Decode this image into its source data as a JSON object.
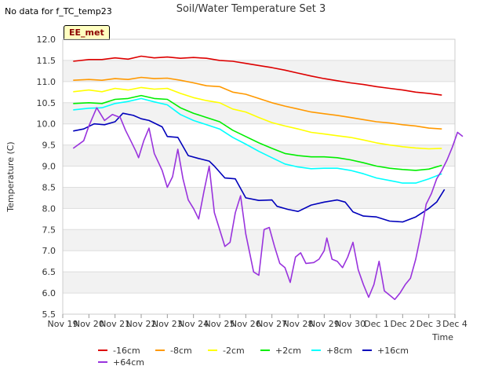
{
  "header": {
    "no_data": "No data for f_TC_temp23",
    "site_badge": "EE_met"
  },
  "chart_data": {
    "type": "line",
    "title": "Soil/Water Temperature Set 3",
    "xlabel": "Time",
    "ylabel": "Temperature (C)",
    "ylim": [
      5.5,
      12.0
    ],
    "xlim": [
      0,
      15
    ],
    "y_ticks": [
      "5.5",
      "6.0",
      "6.5",
      "7.0",
      "7.5",
      "8.0",
      "8.5",
      "9.0",
      "9.5",
      "10.0",
      "10.5",
      "11.0",
      "11.5",
      "12.0"
    ],
    "x_tick_labels": [
      "Nov 19",
      "Nov 20",
      "Nov 21",
      "Nov 22",
      "Nov 23",
      "Nov 24",
      "Nov 25",
      "Nov 26",
      "Nov 27",
      "Nov 28",
      "Nov 29",
      "Nov 30",
      "Dec 1",
      "Dec 2",
      "Dec 3",
      "Dec 4"
    ],
    "grid": true,
    "legend": "bottom",
    "series": [
      {
        "name": "-16cm",
        "color": "#dd0000",
        "points": [
          [
            0.4,
            11.48
          ],
          [
            1,
            11.52
          ],
          [
            1.5,
            11.52
          ],
          [
            2,
            11.56
          ],
          [
            2.5,
            11.53
          ],
          [
            3,
            11.6
          ],
          [
            3.5,
            11.56
          ],
          [
            4,
            11.58
          ],
          [
            4.5,
            11.55
          ],
          [
            5,
            11.57
          ],
          [
            5.5,
            11.55
          ],
          [
            6,
            11.5
          ],
          [
            6.5,
            11.48
          ],
          [
            7,
            11.43
          ],
          [
            7.5,
            11.38
          ],
          [
            8,
            11.33
          ],
          [
            8.5,
            11.27
          ],
          [
            9,
            11.2
          ],
          [
            9.5,
            11.13
          ],
          [
            10,
            11.07
          ],
          [
            10.5,
            11.02
          ],
          [
            11,
            10.97
          ],
          [
            11.5,
            10.93
          ],
          [
            12,
            10.88
          ],
          [
            12.5,
            10.84
          ],
          [
            13,
            10.8
          ],
          [
            13.5,
            10.75
          ],
          [
            14,
            10.72
          ],
          [
            14.5,
            10.68
          ]
        ]
      },
      {
        "name": "-8cm",
        "color": "#ff9900",
        "points": [
          [
            0.4,
            11.03
          ],
          [
            1,
            11.05
          ],
          [
            1.5,
            11.03
          ],
          [
            2,
            11.07
          ],
          [
            2.5,
            11.05
          ],
          [
            3,
            11.1
          ],
          [
            3.5,
            11.07
          ],
          [
            4,
            11.08
          ],
          [
            4.5,
            11.03
          ],
          [
            5,
            10.97
          ],
          [
            5.5,
            10.9
          ],
          [
            6,
            10.88
          ],
          [
            6.5,
            10.75
          ],
          [
            7,
            10.7
          ],
          [
            7.5,
            10.6
          ],
          [
            8,
            10.5
          ],
          [
            8.5,
            10.42
          ],
          [
            9,
            10.35
          ],
          [
            9.5,
            10.28
          ],
          [
            10,
            10.24
          ],
          [
            10.5,
            10.2
          ],
          [
            11,
            10.15
          ],
          [
            11.5,
            10.1
          ],
          [
            12,
            10.05
          ],
          [
            12.5,
            10.02
          ],
          [
            13,
            9.98
          ],
          [
            13.5,
            9.95
          ],
          [
            14,
            9.9
          ],
          [
            14.5,
            9.88
          ]
        ]
      },
      {
        "name": "-2cm",
        "color": "#ffff00",
        "points": [
          [
            0.4,
            10.76
          ],
          [
            1,
            10.8
          ],
          [
            1.5,
            10.76
          ],
          [
            2,
            10.84
          ],
          [
            2.5,
            10.8
          ],
          [
            3,
            10.86
          ],
          [
            3.5,
            10.82
          ],
          [
            4,
            10.84
          ],
          [
            4.5,
            10.72
          ],
          [
            5,
            10.62
          ],
          [
            5.5,
            10.55
          ],
          [
            6,
            10.5
          ],
          [
            6.5,
            10.35
          ],
          [
            7,
            10.28
          ],
          [
            7.5,
            10.15
          ],
          [
            8,
            10.03
          ],
          [
            8.5,
            9.95
          ],
          [
            9,
            9.88
          ],
          [
            9.5,
            9.8
          ],
          [
            10,
            9.76
          ],
          [
            10.5,
            9.72
          ],
          [
            11,
            9.68
          ],
          [
            11.5,
            9.62
          ],
          [
            12,
            9.55
          ],
          [
            12.5,
            9.5
          ],
          [
            13,
            9.46
          ],
          [
            13.5,
            9.43
          ],
          [
            14,
            9.41
          ],
          [
            14.5,
            9.42
          ]
        ]
      },
      {
        "name": "+2cm",
        "color": "#00ee00",
        "points": [
          [
            0.4,
            10.48
          ],
          [
            1,
            10.5
          ],
          [
            1.5,
            10.48
          ],
          [
            2,
            10.58
          ],
          [
            2.5,
            10.6
          ],
          [
            3,
            10.67
          ],
          [
            3.5,
            10.6
          ],
          [
            4,
            10.58
          ],
          [
            4.5,
            10.38
          ],
          [
            5,
            10.25
          ],
          [
            5.5,
            10.15
          ],
          [
            6,
            10.05
          ],
          [
            6.5,
            9.85
          ],
          [
            7,
            9.7
          ],
          [
            7.5,
            9.55
          ],
          [
            8,
            9.42
          ],
          [
            8.5,
            9.3
          ],
          [
            9,
            9.25
          ],
          [
            9.5,
            9.22
          ],
          [
            10,
            9.22
          ],
          [
            10.5,
            9.2
          ],
          [
            11,
            9.15
          ],
          [
            11.5,
            9.08
          ],
          [
            12,
            9.0
          ],
          [
            12.5,
            8.95
          ],
          [
            13,
            8.92
          ],
          [
            13.5,
            8.9
          ],
          [
            14,
            8.93
          ],
          [
            14.5,
            9.02
          ]
        ]
      },
      {
        "name": "+8cm",
        "color": "#00ffff",
        "points": [
          [
            0.4,
            10.33
          ],
          [
            1,
            10.37
          ],
          [
            1.5,
            10.38
          ],
          [
            2,
            10.48
          ],
          [
            2.5,
            10.53
          ],
          [
            3,
            10.6
          ],
          [
            3.5,
            10.52
          ],
          [
            4,
            10.45
          ],
          [
            4.5,
            10.22
          ],
          [
            5,
            10.08
          ],
          [
            5.5,
            9.98
          ],
          [
            6,
            9.88
          ],
          [
            6.5,
            9.68
          ],
          [
            7,
            9.52
          ],
          [
            7.5,
            9.35
          ],
          [
            8,
            9.2
          ],
          [
            8.5,
            9.05
          ],
          [
            9,
            8.98
          ],
          [
            9.5,
            8.94
          ],
          [
            10,
            8.95
          ],
          [
            10.5,
            8.95
          ],
          [
            11,
            8.9
          ],
          [
            11.5,
            8.82
          ],
          [
            12,
            8.72
          ],
          [
            12.5,
            8.66
          ],
          [
            13,
            8.6
          ],
          [
            13.5,
            8.6
          ],
          [
            14,
            8.7
          ],
          [
            14.5,
            8.82
          ]
        ]
      },
      {
        "name": "+16cm",
        "color": "#0000bb",
        "points": [
          [
            0.4,
            9.83
          ],
          [
            0.8,
            9.88
          ],
          [
            1.2,
            10.0
          ],
          [
            1.6,
            9.98
          ],
          [
            2,
            10.05
          ],
          [
            2.3,
            10.25
          ],
          [
            2.7,
            10.2
          ],
          [
            3,
            10.12
          ],
          [
            3.3,
            10.08
          ],
          [
            3.8,
            9.93
          ],
          [
            4,
            9.7
          ],
          [
            4.4,
            9.68
          ],
          [
            4.8,
            9.25
          ],
          [
            5.2,
            9.18
          ],
          [
            5.6,
            9.12
          ],
          [
            5.8,
            9.0
          ],
          [
            6.2,
            8.72
          ],
          [
            6.6,
            8.7
          ],
          [
            7,
            8.25
          ],
          [
            7.5,
            8.19
          ],
          [
            8,
            8.2
          ],
          [
            8.2,
            8.05
          ],
          [
            8.6,
            7.98
          ],
          [
            9,
            7.93
          ],
          [
            9.5,
            8.08
          ],
          [
            10,
            8.15
          ],
          [
            10.5,
            8.2
          ],
          [
            10.8,
            8.15
          ],
          [
            11.1,
            7.92
          ],
          [
            11.5,
            7.82
          ],
          [
            12,
            7.8
          ],
          [
            12.5,
            7.7
          ],
          [
            13,
            7.68
          ],
          [
            13.5,
            7.8
          ],
          [
            14,
            8.0
          ],
          [
            14.3,
            8.15
          ],
          [
            14.6,
            8.45
          ]
        ]
      },
      {
        "name": "+64cm",
        "color": "#9933dd",
        "points": [
          [
            0.4,
            9.42
          ],
          [
            0.8,
            9.6
          ],
          [
            1.0,
            9.95
          ],
          [
            1.3,
            10.38
          ],
          [
            1.6,
            10.08
          ],
          [
            1.9,
            10.22
          ],
          [
            2.2,
            10.15
          ],
          [
            2.4,
            9.85
          ],
          [
            2.6,
            9.6
          ],
          [
            2.8,
            9.35
          ],
          [
            2.9,
            9.2
          ],
          [
            3.1,
            9.6
          ],
          [
            3.3,
            9.9
          ],
          [
            3.5,
            9.3
          ],
          [
            3.8,
            8.9
          ],
          [
            4.0,
            8.5
          ],
          [
            4.2,
            8.75
          ],
          [
            4.4,
            9.4
          ],
          [
            4.6,
            8.7
          ],
          [
            4.8,
            8.2
          ],
          [
            5.0,
            8.0
          ],
          [
            5.2,
            7.75
          ],
          [
            5.4,
            8.4
          ],
          [
            5.6,
            9.0
          ],
          [
            5.8,
            7.9
          ],
          [
            6.0,
            7.5
          ],
          [
            6.2,
            7.1
          ],
          [
            6.4,
            7.2
          ],
          [
            6.6,
            7.9
          ],
          [
            6.8,
            8.3
          ],
          [
            7.0,
            7.4
          ],
          [
            7.3,
            6.5
          ],
          [
            7.5,
            6.42
          ],
          [
            7.7,
            7.5
          ],
          [
            7.9,
            7.55
          ],
          [
            8.1,
            7.1
          ],
          [
            8.3,
            6.7
          ],
          [
            8.5,
            6.6
          ],
          [
            8.7,
            6.25
          ],
          [
            8.9,
            6.85
          ],
          [
            9.1,
            6.95
          ],
          [
            9.3,
            6.7
          ],
          [
            9.6,
            6.72
          ],
          [
            9.8,
            6.8
          ],
          [
            10.0,
            7.0
          ],
          [
            10.1,
            7.3
          ],
          [
            10.3,
            6.8
          ],
          [
            10.5,
            6.75
          ],
          [
            10.7,
            6.6
          ],
          [
            10.9,
            6.85
          ],
          [
            11.1,
            7.2
          ],
          [
            11.3,
            6.55
          ],
          [
            11.5,
            6.2
          ],
          [
            11.7,
            5.9
          ],
          [
            11.9,
            6.2
          ],
          [
            12.1,
            6.75
          ],
          [
            12.3,
            6.05
          ],
          [
            12.5,
            5.95
          ],
          [
            12.7,
            5.85
          ],
          [
            12.9,
            6.0
          ],
          [
            13.1,
            6.2
          ],
          [
            13.3,
            6.35
          ],
          [
            13.5,
            6.8
          ],
          [
            13.7,
            7.4
          ],
          [
            13.9,
            8.1
          ],
          [
            14.1,
            8.35
          ],
          [
            14.3,
            8.7
          ],
          [
            14.5,
            8.9
          ],
          [
            14.7,
            9.15
          ],
          [
            14.9,
            9.45
          ],
          [
            15.1,
            9.8
          ],
          [
            15.3,
            9.7
          ]
        ]
      }
    ]
  }
}
